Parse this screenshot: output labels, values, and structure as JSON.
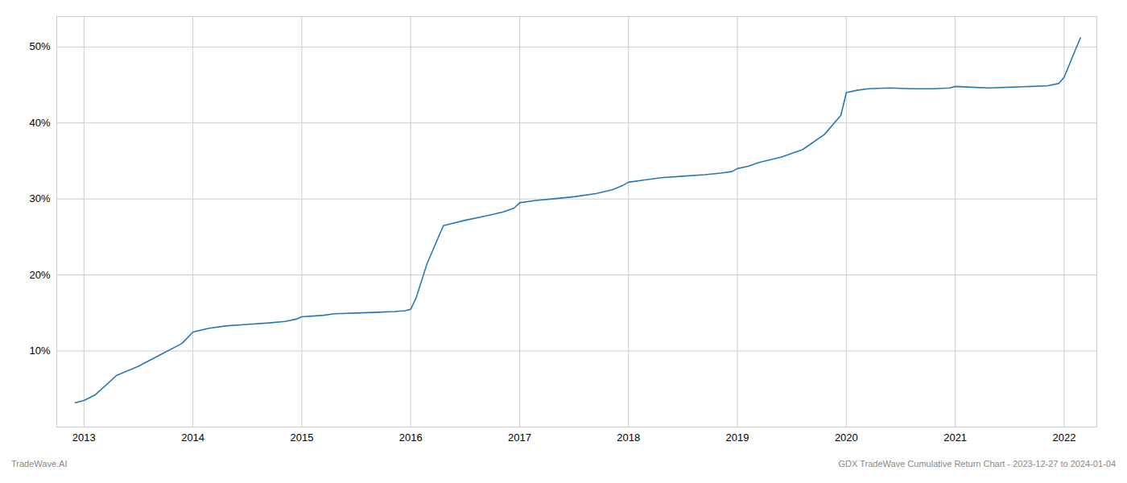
{
  "chart_data": {
    "type": "line",
    "x": [
      2012.92,
      2013.0,
      2013.1,
      2013.2,
      2013.3,
      2013.5,
      2013.7,
      2013.9,
      2014.0,
      2014.15,
      2014.3,
      2014.5,
      2014.7,
      2014.85,
      2014.95,
      2015.0,
      2015.1,
      2015.2,
      2015.3,
      2015.5,
      2015.7,
      2015.85,
      2015.95,
      2016.0,
      2016.05,
      2016.15,
      2016.3,
      2016.5,
      2016.7,
      2016.85,
      2016.95,
      2017.0,
      2017.15,
      2017.3,
      2017.5,
      2017.7,
      2017.85,
      2017.95,
      2018.0,
      2018.15,
      2018.3,
      2018.5,
      2018.7,
      2018.85,
      2018.95,
      2019.0,
      2019.1,
      2019.2,
      2019.4,
      2019.6,
      2019.8,
      2019.95,
      2020.0,
      2020.1,
      2020.2,
      2020.4,
      2020.6,
      2020.8,
      2020.95,
      2021.0,
      2021.15,
      2021.3,
      2021.5,
      2021.7,
      2021.85,
      2021.95,
      2022.0,
      2022.1,
      2022.15
    ],
    "values": [
      3.2,
      3.5,
      4.2,
      5.5,
      6.8,
      8.0,
      9.5,
      11.0,
      12.5,
      13.0,
      13.3,
      13.5,
      13.7,
      13.9,
      14.2,
      14.5,
      14.6,
      14.7,
      14.9,
      15.0,
      15.1,
      15.2,
      15.3,
      15.5,
      17.0,
      21.5,
      26.5,
      27.2,
      27.8,
      28.3,
      28.8,
      29.5,
      29.8,
      30.0,
      30.3,
      30.7,
      31.2,
      31.8,
      32.2,
      32.5,
      32.8,
      33.0,
      33.2,
      33.4,
      33.6,
      34.0,
      34.3,
      34.8,
      35.5,
      36.5,
      38.5,
      41.0,
      44.0,
      44.3,
      44.5,
      44.6,
      44.5,
      44.5,
      44.6,
      44.8,
      44.7,
      44.6,
      44.7,
      44.8,
      44.9,
      45.2,
      46.0,
      49.5,
      51.2
    ],
    "color": "#2878b5",
    "xlim": [
      2012.75,
      2022.3
    ],
    "xticks": [
      2013,
      2014,
      2015,
      2016,
      2017,
      2018,
      2019,
      2020,
      2021,
      2022
    ],
    "ylim": [
      0,
      54
    ],
    "yticks": [
      {
        "value": 10,
        "label": "10%"
      },
      {
        "value": 20,
        "label": "20%"
      },
      {
        "value": 30,
        "label": "30%"
      },
      {
        "value": 40,
        "label": "40%"
      },
      {
        "value": 50,
        "label": "50%"
      }
    ],
    "grid": true,
    "annotations": [
      "TradeWave.AI",
      "GDX TradeWave Cumulative Return Chart - 2023-12-27 to 2024-01-04"
    ]
  }
}
